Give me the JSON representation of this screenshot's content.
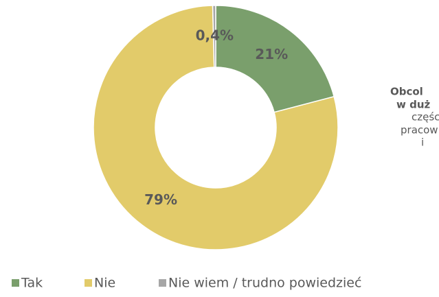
{
  "chart_data": {
    "type": "donut",
    "categories": [
      "Tak",
      "Nie",
      "Nie wiem / trudno powiedzieć"
    ],
    "values": [
      21,
      79,
      0.4
    ],
    "value_labels": [
      "21%",
      "79%",
      "0,4%"
    ],
    "colors": [
      "#7a9f6c",
      "#e2cb6a",
      "#a6a6a6"
    ],
    "legend": "bottom",
    "annotation_lines": [
      "Obcol",
      "w duż",
      "częśc",
      "pracow",
      "i"
    ]
  }
}
